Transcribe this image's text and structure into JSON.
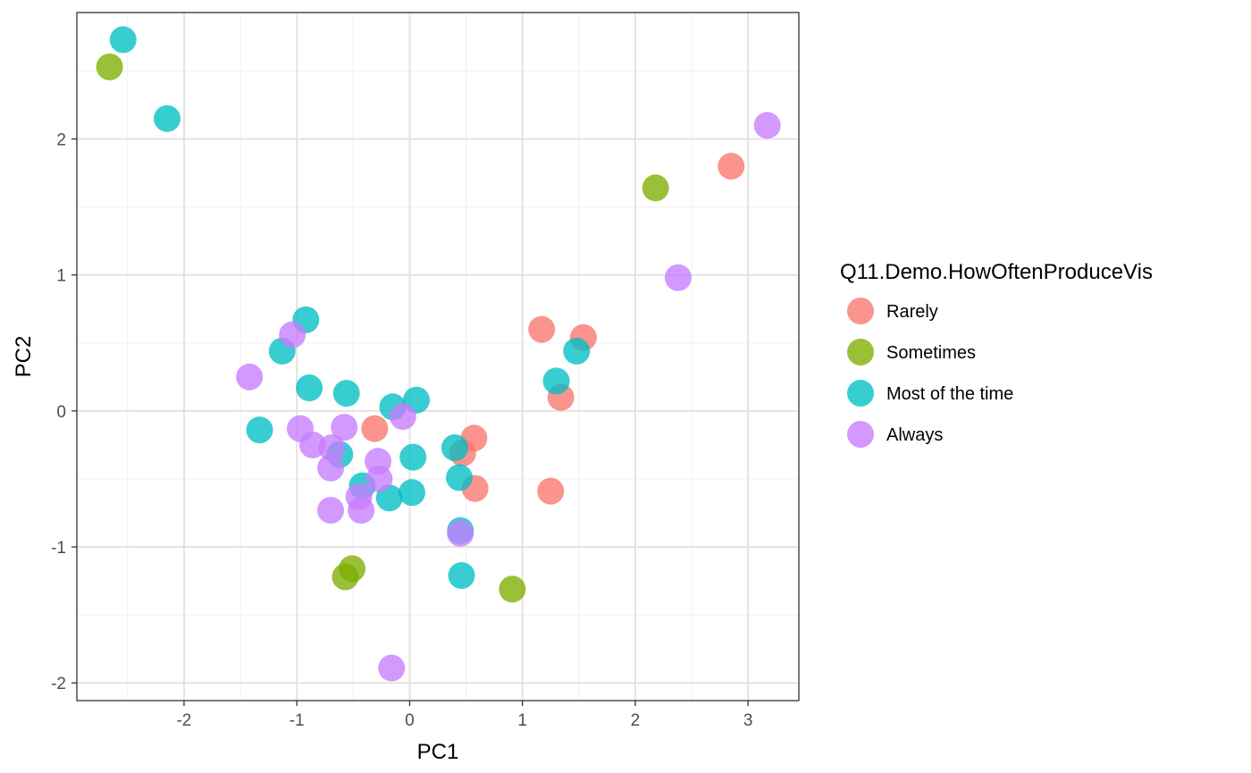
{
  "chart_data": {
    "type": "scatter",
    "xlabel": "PC1",
    "ylabel": "PC2",
    "xlim": [
      -2.95,
      3.45
    ],
    "ylim": [
      -2.13,
      2.93
    ],
    "x_ticks": [
      -2,
      -1,
      0,
      1,
      2,
      3
    ],
    "y_ticks": [
      -2,
      -1,
      0,
      1,
      2
    ],
    "x_tick_labels": [
      "-2",
      "-1",
      "0",
      "1",
      "2",
      "3"
    ],
    "y_tick_labels": [
      "-2",
      "-1",
      "0",
      "1",
      "2"
    ],
    "grid": true,
    "legend": {
      "title": "Q11.Demo.HowOftenProduceVis",
      "position": "right"
    },
    "series": [
      {
        "name": "Rarely",
        "color": "#F8766D",
        "points": [
          [
            2.85,
            1.8
          ],
          [
            1.17,
            0.6
          ],
          [
            1.54,
            0.54
          ],
          [
            1.34,
            0.1
          ],
          [
            -0.31,
            -0.13
          ],
          [
            0.57,
            -0.2
          ],
          [
            0.47,
            -0.31
          ],
          [
            0.58,
            -0.57
          ],
          [
            1.25,
            -0.59
          ]
        ]
      },
      {
        "name": "Sometimes",
        "color": "#7CAE00",
        "points": [
          [
            -2.66,
            2.53
          ],
          [
            2.18,
            1.64
          ],
          [
            -0.51,
            -1.16
          ],
          [
            -0.57,
            -1.22
          ],
          [
            0.91,
            -1.31
          ]
        ]
      },
      {
        "name": "Most of the time",
        "color": "#00BFC4",
        "points": [
          [
            -2.54,
            2.73
          ],
          [
            -2.15,
            2.15
          ],
          [
            -0.92,
            0.67
          ],
          [
            -1.13,
            0.44
          ],
          [
            -0.89,
            0.17
          ],
          [
            -0.56,
            0.13
          ],
          [
            1.48,
            0.44
          ],
          [
            1.3,
            0.22
          ],
          [
            -1.33,
            -0.14
          ],
          [
            -0.15,
            0.03
          ],
          [
            0.06,
            0.08
          ],
          [
            0.03,
            -0.34
          ],
          [
            0.4,
            -0.27
          ],
          [
            -0.62,
            -0.32
          ],
          [
            -0.42,
            -0.55
          ],
          [
            -0.18,
            -0.64
          ],
          [
            0.02,
            -0.6
          ],
          [
            0.44,
            -0.49
          ],
          [
            0.45,
            -0.88
          ],
          [
            0.46,
            -1.21
          ]
        ]
      },
      {
        "name": "Always",
        "color": "#C77CFF",
        "points": [
          [
            3.17,
            2.1
          ],
          [
            2.38,
            0.98
          ],
          [
            -1.04,
            0.56
          ],
          [
            -1.42,
            0.25
          ],
          [
            -0.97,
            -0.13
          ],
          [
            -0.58,
            -0.12
          ],
          [
            -0.06,
            -0.04
          ],
          [
            -0.86,
            -0.25
          ],
          [
            -0.69,
            -0.27
          ],
          [
            -0.28,
            -0.37
          ],
          [
            -0.7,
            -0.42
          ],
          [
            -0.27,
            -0.5
          ],
          [
            -0.45,
            -0.63
          ],
          [
            -0.7,
            -0.73
          ],
          [
            -0.43,
            -0.73
          ],
          [
            0.45,
            -0.9
          ],
          [
            -0.16,
            -1.89
          ]
        ]
      }
    ]
  }
}
